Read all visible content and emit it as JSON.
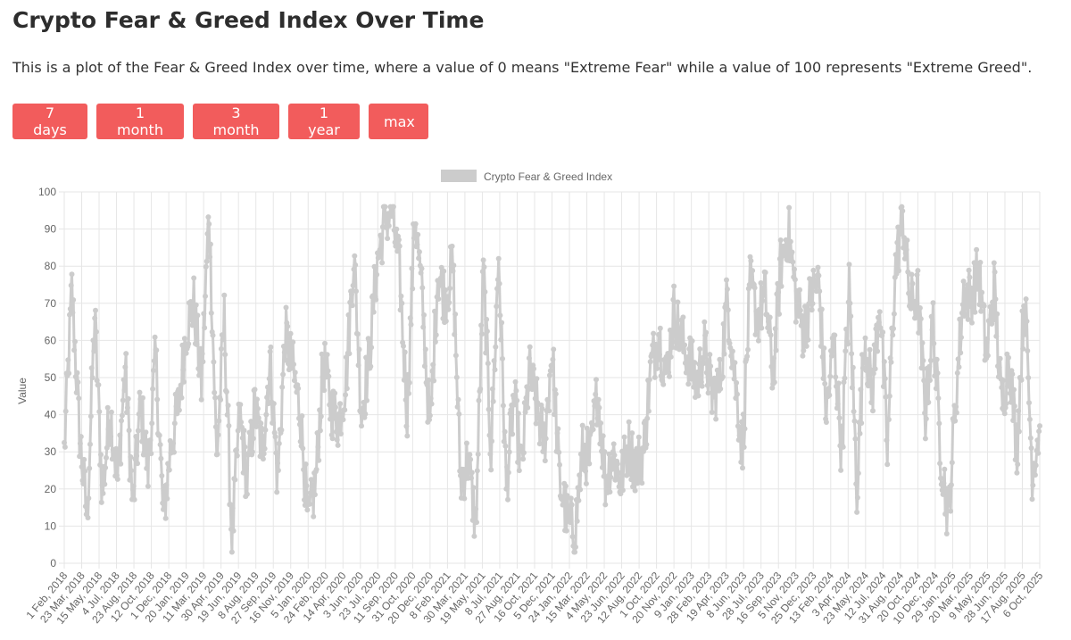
{
  "page": {
    "title": "Crypto Fear & Greed Index Over Time",
    "description": "This is a plot of the Fear & Greed Index over time, where a value of 0 means \"Extreme Fear\" while a value of 100 represents \"Extreme Greed\"."
  },
  "range_buttons": [
    {
      "label": "7 days"
    },
    {
      "label": "1 month"
    },
    {
      "label": "3 month"
    },
    {
      "label": "1 year"
    },
    {
      "label": "max"
    }
  ],
  "colors": {
    "button_bg": "#f25c5c",
    "series": "#cccccc",
    "grid": "#e6e6e6"
  },
  "chart_data": {
    "type": "line",
    "title": "",
    "legend": {
      "label": "Crypto Fear & Greed Index",
      "position": "top"
    },
    "ylabel": "Value",
    "xlabel": "",
    "ylim": [
      0,
      100
    ],
    "yticks": [
      0,
      10,
      20,
      30,
      40,
      50,
      60,
      70,
      80,
      90,
      100
    ],
    "x_tick_labels": [
      "1 Feb, 2018",
      "23 Mar, 2018",
      "15 May, 2018",
      "4 Jul, 2018",
      "23 Aug, 2018",
      "12 Oct, 2018",
      "1 Dec, 2018",
      "20 Jan, 2019",
      "11 Mar, 2019",
      "30 Apr, 2019",
      "19 Jun, 2019",
      "8 Aug, 2019",
      "27 Sep, 2019",
      "16 Nov, 2019",
      "5 Jan, 2020",
      "24 Feb, 2020",
      "14 Apr, 2020",
      "3 Jun, 2020",
      "23 Jul, 2020",
      "11 Sep, 2020",
      "31 Oct, 2020",
      "20 Dec, 2020",
      "8 Feb, 2021",
      "30 Mar, 2021",
      "19 May, 2021",
      "8 Jul, 2021",
      "27 Aug, 2021",
      "16 Oct, 2021",
      "5 Dec, 2021",
      "24 Jan, 2022",
      "15 Mar, 2022",
      "4 May, 2022",
      "23 Jun, 2022",
      "12 Aug, 2022",
      "1 Oct, 2022",
      "20 Nov, 2022",
      "9 Jan, 2023",
      "28 Feb, 2023",
      "19 Apr, 2023",
      "8 Jun, 2023",
      "28 Jul, 2023",
      "16 Sep, 2023",
      "5 Nov, 2023",
      "25 Dec, 2023",
      "13 Feb, 2024",
      "3 Apr, 2024",
      "23 May, 2024",
      "12 Jul, 2024",
      "31 Aug, 2024",
      "20 Oct, 2024",
      "10 Dec, 2024",
      "29 Jan, 2025",
      "20 Mar, 2025",
      "9 May, 2025",
      "28 Jun, 2025",
      "17 Aug, 2025",
      "6 Oct, 2025"
    ],
    "series": [
      {
        "name": "Crypto Fear & Greed Index",
        "anchor_values": [
          30,
          74,
          35,
          12,
          67,
          18,
          42,
          22,
          53,
          15,
          43,
          25,
          56,
          12,
          32,
          42,
          63,
          70,
          48,
          95,
          28,
          66,
          5,
          40,
          22,
          42,
          30,
          55,
          22,
          62,
          52,
          40,
          10,
          22,
          55,
          42,
          38,
          50,
          84,
          40,
          55,
          80,
          92,
          95,
          78,
          40,
          95,
          70,
          35,
          78,
          72,
          80,
          22,
          28,
          10,
          79,
          30,
          83,
          20,
          45,
          25,
          52,
          42,
          32,
          58,
          22,
          12,
          8,
          30,
          28,
          47,
          22,
          30,
          22,
          32,
          26,
          30,
          53,
          62,
          50,
          68,
          60,
          55,
          48,
          58,
          45,
          48,
          72,
          50,
          30,
          75,
          66,
          72,
          50,
          80,
          90,
          72,
          62,
          72,
          76,
          40,
          60,
          30,
          74,
          20,
          62,
          45,
          72,
          30,
          78,
          94,
          70,
          72,
          40,
          65,
          30,
          12,
          45,
          73,
          72,
          79,
          55,
          75,
          42,
          56,
          30,
          74,
          25,
          37
        ]
      }
    ]
  }
}
